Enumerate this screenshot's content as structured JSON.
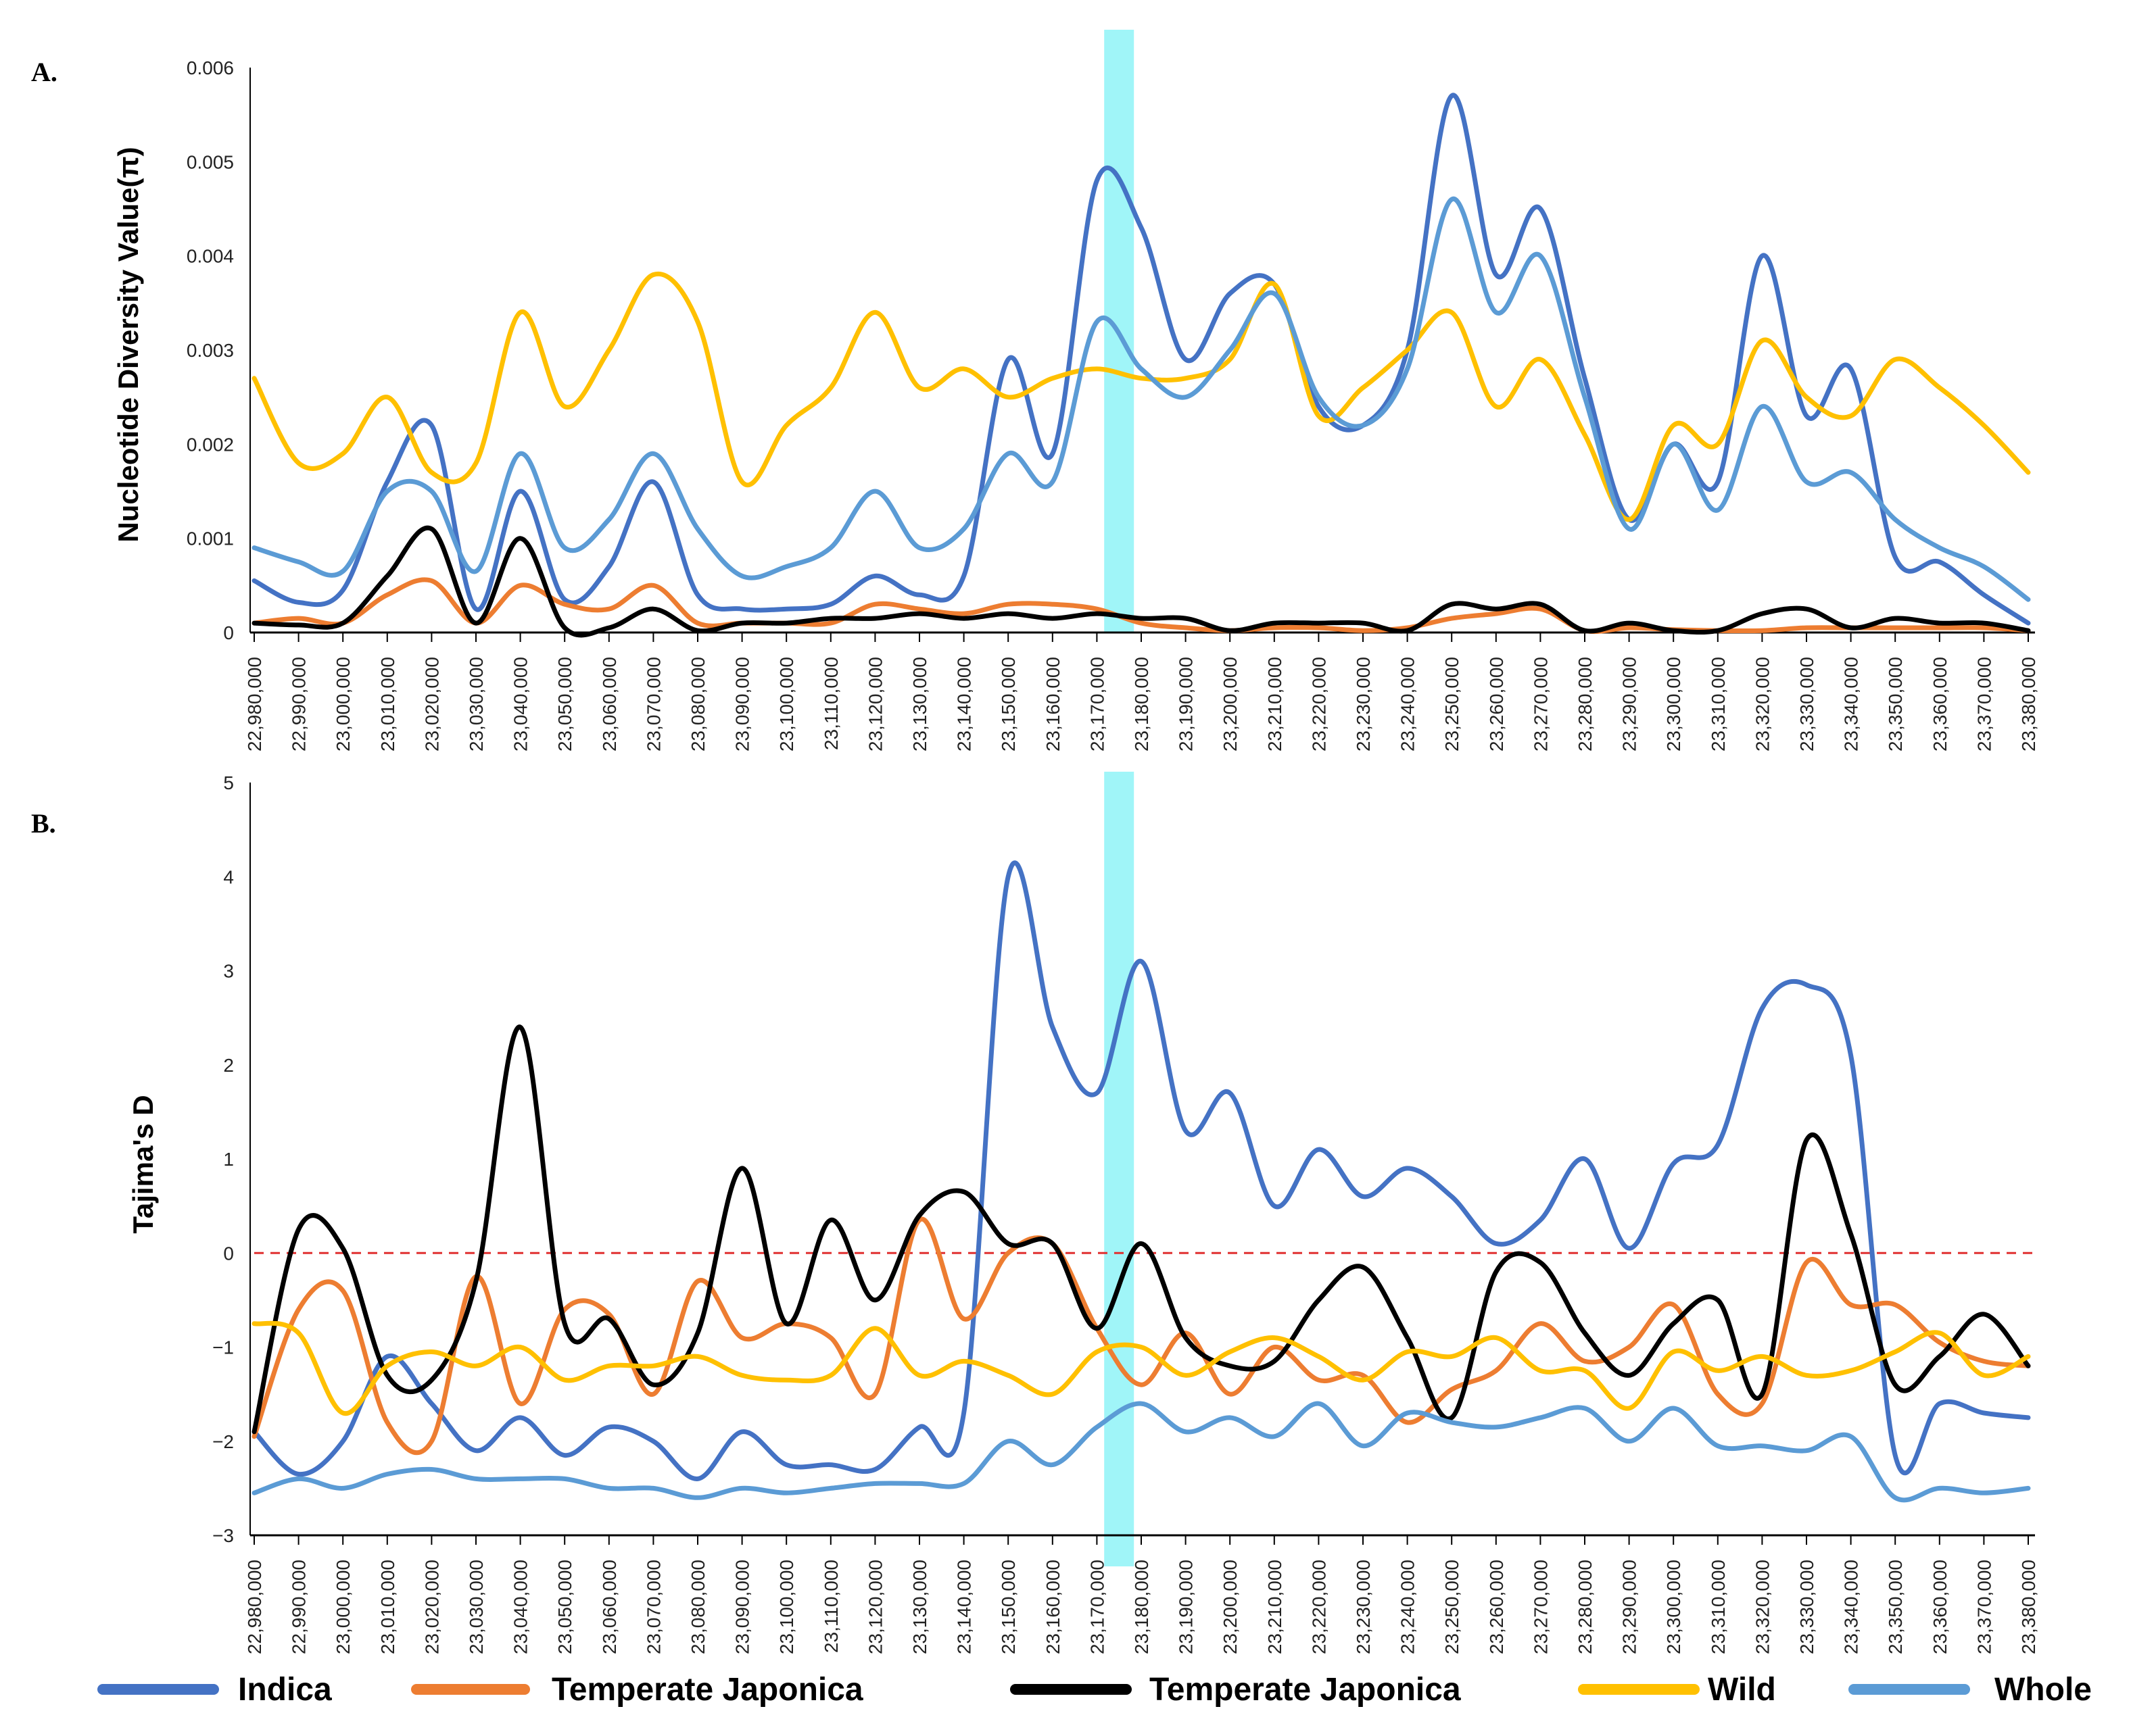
{
  "colors": {
    "Indica": "#4472c4",
    "Temperate Japonica (orange)": "#ed7d31",
    "Temperate Japonica (black)": "#000000",
    "Wild": "#ffc000",
    "Whole": "#5b9bd5",
    "highlight": "#8ff3f7",
    "zero_line": "#e03030"
  },
  "legend": [
    {
      "label": "Indica",
      "color": "#4472c4"
    },
    {
      "label": "Temperate Japonica",
      "color": "#ed7d31"
    },
    {
      "label": "Temperate Japonica",
      "color": "#000000"
    },
    {
      "label": "Wild",
      "color": "#ffc000"
    },
    {
      "label": "Whole",
      "color": "#5b9bd5"
    }
  ],
  "chart_data": [
    {
      "panel": "A.",
      "type": "line",
      "ylabel": "Nucleotide Diversity Value(π)",
      "ylim": [
        0,
        0.006
      ],
      "yticks": [
        "0",
        "0.001",
        "0.002",
        "0.003",
        "0.004",
        "0.005",
        "0.006"
      ],
      "highlight_x": "23,175,000",
      "categories": [
        "22,980,000",
        "22,990,000",
        "23,000,000",
        "23,010,000",
        "23,020,000",
        "23,030,000",
        "23,040,000",
        "23,050,000",
        "23,060,000",
        "23,070,000",
        "23,080,000",
        "23,090,000",
        "23,100,000",
        "23,110,000",
        "23,120,000",
        "23,130,000",
        "23,140,000",
        "23,150,000",
        "23,160,000",
        "23,170,000",
        "23,180,000",
        "23,190,000",
        "23,200,000",
        "23,210,000",
        "23,220,000",
        "23,230,000",
        "23,240,000",
        "23,250,000",
        "23,260,000",
        "23,270,000",
        "23,280,000",
        "23,290,000",
        "23,300,000",
        "23,310,000",
        "23,320,000",
        "23,330,000",
        "23,340,000",
        "23,350,000",
        "23,360,000",
        "23,370,000",
        "23,380,000"
      ],
      "series": [
        {
          "name": "Indica",
          "values": [
            0.00055,
            0.00032,
            0.00045,
            0.0016,
            0.0022,
            0.00025,
            0.0015,
            0.00035,
            0.0007,
            0.0016,
            0.0004,
            0.00025,
            0.00025,
            0.0003,
            0.0006,
            0.0004,
            0.0006,
            0.0029,
            0.0019,
            0.0048,
            0.0043,
            0.0029,
            0.0036,
            0.0037,
            0.0024,
            0.0022,
            0.003,
            0.0057,
            0.0038,
            0.0045,
            0.0027,
            0.0012,
            0.002,
            0.0016,
            0.004,
            0.0023,
            0.0028,
            0.0008,
            0.00075,
            0.0004,
            0.0001
          ]
        },
        {
          "name": "Temperate Japonica",
          "values": [
            0.0001,
            0.00015,
            0.0001,
            0.0004,
            0.00055,
            0.0001,
            0.0005,
            0.0003,
            0.00025,
            0.0005,
            0.0001,
            0.0001,
            0.0001,
            0.0001,
            0.0003,
            0.00025,
            0.0002,
            0.0003,
            0.0003,
            0.00025,
            0.0001,
            5e-05,
            2e-05,
            5e-05,
            5e-05,
            2e-05,
            5e-05,
            0.00015,
            0.0002,
            0.00025,
            2e-05,
            5e-05,
            3e-05,
            2e-05,
            2e-05,
            5e-05,
            5e-05,
            5e-05,
            5e-05,
            5e-05,
            2e-05
          ]
        },
        {
          "name": "Temperate Japonica",
          "values": [
            0.0001,
            8e-05,
            0.0001,
            0.0006,
            0.0011,
            0.0001,
            0.001,
            5e-05,
            5e-05,
            0.00025,
            2e-05,
            0.0001,
            0.0001,
            0.00015,
            0.00015,
            0.0002,
            0.00015,
            0.0002,
            0.00015,
            0.0002,
            0.00015,
            0.00015,
            2e-05,
            0.0001,
            0.0001,
            0.0001,
            2e-05,
            0.0003,
            0.00025,
            0.0003,
            2e-05,
            0.0001,
            2e-05,
            2e-05,
            0.0002,
            0.00025,
            5e-05,
            0.00015,
            0.0001,
            0.0001,
            2e-05
          ]
        },
        {
          "name": "Wild",
          "values": [
            0.0027,
            0.0018,
            0.0019,
            0.0025,
            0.0017,
            0.0018,
            0.0034,
            0.0024,
            0.003,
            0.0038,
            0.0033,
            0.0016,
            0.0022,
            0.0026,
            0.0034,
            0.0026,
            0.0028,
            0.0025,
            0.0027,
            0.0028,
            0.0027,
            0.0027,
            0.0029,
            0.0037,
            0.0023,
            0.0026,
            0.003,
            0.0034,
            0.0024,
            0.0029,
            0.0021,
            0.0012,
            0.0022,
            0.002,
            0.0031,
            0.0025,
            0.0023,
            0.0029,
            0.0026,
            0.0022,
            0.0017
          ]
        },
        {
          "name": "Whole",
          "values": [
            0.0009,
            0.00075,
            0.00065,
            0.0015,
            0.0015,
            0.00065,
            0.0019,
            0.0009,
            0.0012,
            0.0019,
            0.0011,
            0.0006,
            0.0007,
            0.0009,
            0.0015,
            0.0009,
            0.0011,
            0.0019,
            0.0016,
            0.0033,
            0.0028,
            0.0025,
            0.003,
            0.0036,
            0.0025,
            0.0022,
            0.0028,
            0.0046,
            0.0034,
            0.004,
            0.0025,
            0.0011,
            0.002,
            0.0013,
            0.0024,
            0.0016,
            0.0017,
            0.0012,
            0.0009,
            0.0007,
            0.00035
          ]
        }
      ]
    },
    {
      "panel": "B.",
      "type": "line",
      "ylabel": "Tajima's D",
      "ylim": [
        -3,
        5
      ],
      "yticks": [
        "−3",
        "−2",
        "−1",
        "0",
        "1",
        "2",
        "3",
        "4",
        "5"
      ],
      "reference_line": 0,
      "highlight_x": "23,175,000",
      "categories": [
        "22,980,000",
        "22,990,000",
        "23,000,000",
        "23,010,000",
        "23,020,000",
        "23,030,000",
        "23,040,000",
        "23,050,000",
        "23,060,000",
        "23,070,000",
        "23,080,000",
        "23,090,000",
        "23,100,000",
        "23,110,000",
        "23,120,000",
        "23,130,000",
        "23,140,000",
        "23,150,000",
        "23,160,000",
        "23,170,000",
        "23,180,000",
        "23,190,000",
        "23,200,000",
        "23,210,000",
        "23,220,000",
        "23,230,000",
        "23,240,000",
        "23,250,000",
        "23,260,000",
        "23,270,000",
        "23,280,000",
        "23,290,000",
        "23,300,000",
        "23,310,000",
        "23,320,000",
        "23,330,000",
        "23,340,000",
        "23,350,000",
        "23,360,000",
        "23,370,000",
        "23,380,000"
      ],
      "series": [
        {
          "name": "Indica",
          "values": [
            -1.9,
            -2.35,
            -2.0,
            -1.1,
            -1.6,
            -2.1,
            -1.75,
            -2.15,
            -1.85,
            -2.0,
            -2.4,
            -1.9,
            -2.25,
            -2.25,
            -2.3,
            -1.85,
            -1.7,
            4.0,
            2.4,
            1.7,
            3.1,
            1.3,
            1.7,
            0.5,
            1.1,
            0.6,
            0.9,
            0.6,
            0.1,
            0.35,
            1.0,
            0.05,
            0.95,
            1.15,
            2.6,
            2.85,
            2.1,
            -2.15,
            -1.6,
            -1.7,
            -1.75
          ]
        },
        {
          "name": "Temperate Japonica",
          "values": [
            -1.95,
            -0.6,
            -0.4,
            -1.8,
            -2.0,
            -0.25,
            -1.6,
            -0.6,
            -0.65,
            -1.5,
            -0.3,
            -0.9,
            -0.75,
            -0.9,
            -1.5,
            0.35,
            -0.7,
            0.0,
            0.1,
            -0.8,
            -1.4,
            -0.85,
            -1.5,
            -1.0,
            -1.35,
            -1.3,
            -1.8,
            -1.45,
            -1.25,
            -0.75,
            -1.15,
            -1.0,
            -0.55,
            -1.5,
            -1.6,
            -0.1,
            -0.55,
            -0.55,
            -0.95,
            -1.15,
            -1.2
          ]
        },
        {
          "name": "Temperate Japonica",
          "values": [
            -1.9,
            0.25,
            0.05,
            -1.3,
            -1.35,
            -0.3,
            2.4,
            -0.75,
            -0.7,
            -1.4,
            -0.85,
            0.9,
            -0.75,
            0.35,
            -0.5,
            0.4,
            0.65,
            0.1,
            0.1,
            -0.8,
            0.1,
            -0.9,
            -1.2,
            -1.15,
            -0.5,
            -0.15,
            -0.9,
            -1.75,
            -0.2,
            -0.1,
            -0.85,
            -1.3,
            -0.75,
            -0.5,
            -1.5,
            1.2,
            0.2,
            -1.4,
            -1.1,
            -0.65,
            -1.2
          ]
        },
        {
          "name": "Wild",
          "values": [
            -0.75,
            -0.85,
            -1.7,
            -1.2,
            -1.05,
            -1.2,
            -1.0,
            -1.35,
            -1.2,
            -1.2,
            -1.1,
            -1.3,
            -1.35,
            -1.3,
            -0.8,
            -1.3,
            -1.15,
            -1.3,
            -1.5,
            -1.05,
            -1.0,
            -1.3,
            -1.05,
            -0.9,
            -1.1,
            -1.35,
            -1.05,
            -1.1,
            -0.9,
            -1.25,
            -1.25,
            -1.65,
            -1.05,
            -1.25,
            -1.1,
            -1.3,
            -1.25,
            -1.05,
            -0.85,
            -1.3,
            -1.1
          ]
        },
        {
          "name": "Whole",
          "values": [
            -2.55,
            -2.4,
            -2.5,
            -2.35,
            -2.3,
            -2.4,
            -2.4,
            -2.4,
            -2.5,
            -2.5,
            -2.6,
            -2.5,
            -2.55,
            -2.5,
            -2.45,
            -2.45,
            -2.45,
            -2.0,
            -2.25,
            -1.85,
            -1.6,
            -1.9,
            -1.75,
            -1.95,
            -1.6,
            -2.05,
            -1.7,
            -1.8,
            -1.85,
            -1.75,
            -1.65,
            -2.0,
            -1.65,
            -2.05,
            -2.05,
            -2.1,
            -1.95,
            -2.6,
            -2.5,
            -2.55,
            -2.5
          ]
        }
      ]
    }
  ]
}
